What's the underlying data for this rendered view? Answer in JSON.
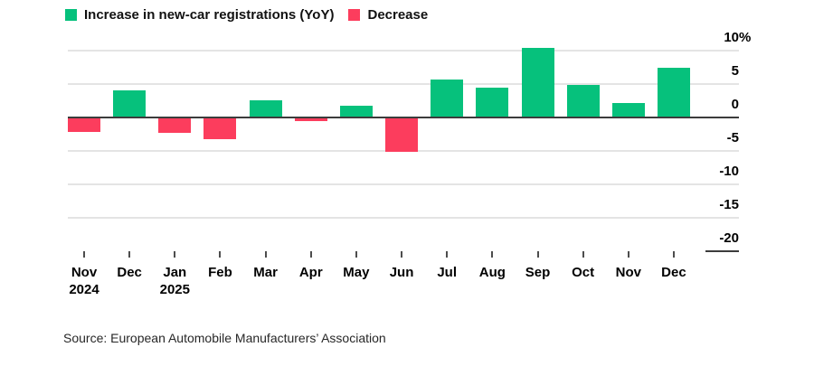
{
  "legend": {
    "increase_label": "Increase in new-car registrations (YoY)",
    "decrease_label": "Decrease"
  },
  "source": "Source: European Automobile Manufacturers’ Association",
  "colors": {
    "increase": "#06C17C",
    "decrease": "#FC3D5D",
    "gridline": "#E4E4E4",
    "zero_line": "#3C3C3C",
    "axis_segment": "#3C3C3C",
    "tick": "#4D4D4D",
    "text": "#000000"
  },
  "chart_data": {
    "type": "bar",
    "title": "",
    "categories": [
      "Nov",
      "Dec",
      "Jan",
      "Feb",
      "Mar",
      "Apr",
      "May",
      "Jun",
      "Jul",
      "Aug",
      "Sep",
      "Oct",
      "Nov",
      "Dec"
    ],
    "category_years": {
      "0": "2024",
      "2": "2025"
    },
    "values": [
      -2.1,
      4.0,
      -2.3,
      -3.3,
      2.6,
      -0.5,
      1.8,
      -5.1,
      5.7,
      4.5,
      10.4,
      4.8,
      2.2,
      7.4
    ],
    "series_name_positive": "Increase in new-car registrations (YoY)",
    "series_name_negative": "Decrease",
    "unit": "%",
    "ylim": [
      -20,
      10
    ],
    "yticks": [
      10,
      5,
      0,
      -5,
      -10,
      -15,
      -20
    ],
    "ytick_labels": [
      "10%",
      "5",
      "0",
      "-5",
      "-10",
      "-15",
      "-20"
    ],
    "xlabel": "",
    "ylabel": "",
    "grid": "horizontal",
    "legend_position": "top-left"
  }
}
